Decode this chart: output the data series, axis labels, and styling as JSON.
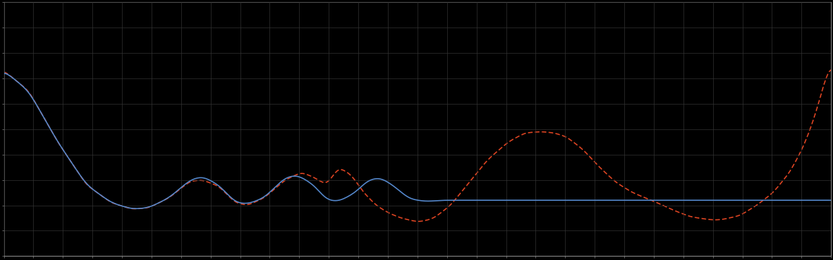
{
  "background_color": "#000000",
  "plot_bg_color": "#000000",
  "grid_color": "#333333",
  "line1_color": "#5588cc",
  "line2_color": "#dd4422",
  "line1_style": "-",
  "line2_style": "--",
  "line_width": 1.2,
  "figsize": [
    12.09,
    3.78
  ],
  "dpi": 100,
  "spine_color": "#888888",
  "tick_color": "#888888",
  "grid_linewidth": 0.5,
  "n_xticks": 28,
  "n_yticks": 10
}
